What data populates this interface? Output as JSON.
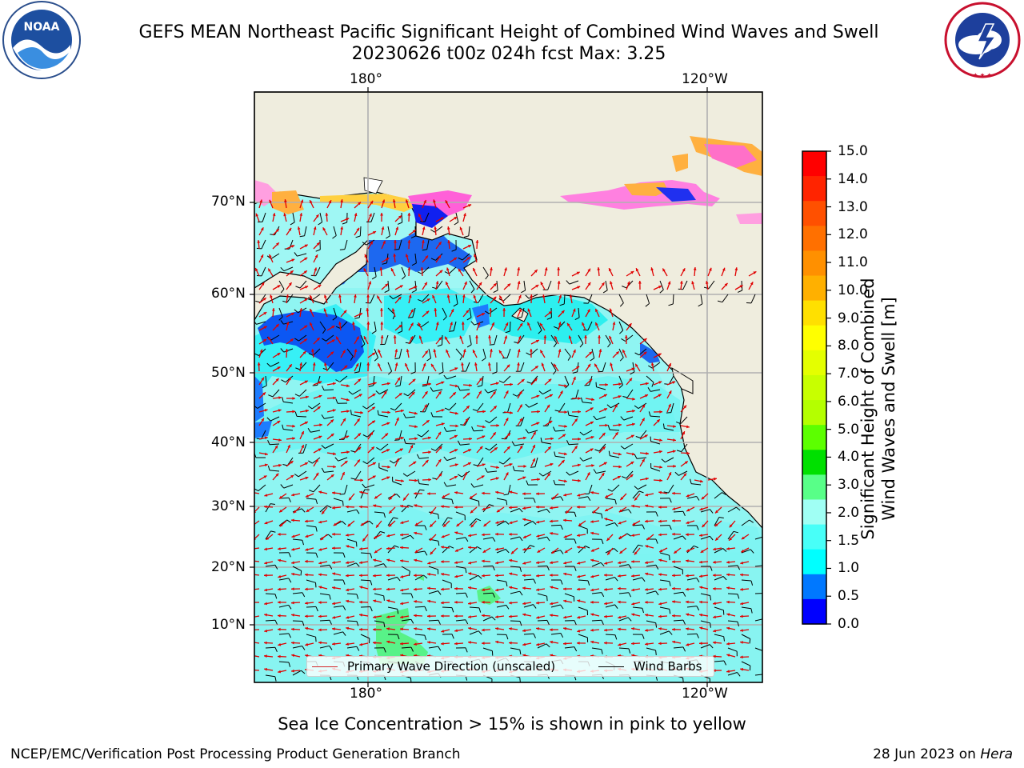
{
  "title": {
    "line1": "GEFS MEAN Northeast Pacific Significant Height of Combined Wind Waves and Swell",
    "line2": "20230626 t00z 024h fcst   Max: 3.25"
  },
  "logos": {
    "left": {
      "icon": "noaa-logo",
      "text": "NOAA"
    },
    "right": {
      "icon": "nws-logo",
      "text": "NATIONAL WEATHER SERVICE"
    }
  },
  "map": {
    "lon_labels_top": [
      "180°",
      "120°W"
    ],
    "lon_labels_bottom": [
      "180°",
      "120°W"
    ],
    "lat_labels": [
      "70°N",
      "60°N",
      "50°N",
      "40°N",
      "30°N",
      "20°N",
      "10°N"
    ],
    "land_color": "#efedde",
    "ocean_base_color": "#9ff7f4",
    "vector_color": "#e00000",
    "barb_color": "#000000"
  },
  "legend": {
    "wave_label": "Primary Wave Direction (unscaled)",
    "wave_color": "#d62728",
    "barb_label": "Wind Barbs",
    "barb_color": "#000000"
  },
  "colorbar": {
    "label_line1": "Significant Height of Combined",
    "label_line2": "Wind Waves and Swell [m]",
    "ticks": [
      "15.0",
      "14.0",
      "13.0",
      "12.0",
      "11.0",
      "10.0",
      "9.0",
      "8.0",
      "7.0",
      "6.0",
      "5.0",
      "4.0",
      "3.0",
      "2.0",
      "1.5",
      "1.0",
      "0.5",
      "0.0"
    ],
    "colors_top_to_bottom": [
      "#ff0000",
      "#ff2400",
      "#ff5000",
      "#ff7000",
      "#ff9000",
      "#ffb000",
      "#ffe000",
      "#ffff00",
      "#e4ff00",
      "#c8ff00",
      "#b4ff00",
      "#5cff00",
      "#00e000",
      "#58ff88",
      "#a0fff4",
      "#48fff8",
      "#00ffff",
      "#0078ff",
      "#0000ff"
    ]
  },
  "caption": "Sea Ice Concentration > 15% is shown in pink to yellow",
  "footer": {
    "left": "NCEP/EMC/Verification Post Processing Product Generation Branch",
    "right_date": "28 Jun 2023 on ",
    "right_host": "Hera"
  }
}
